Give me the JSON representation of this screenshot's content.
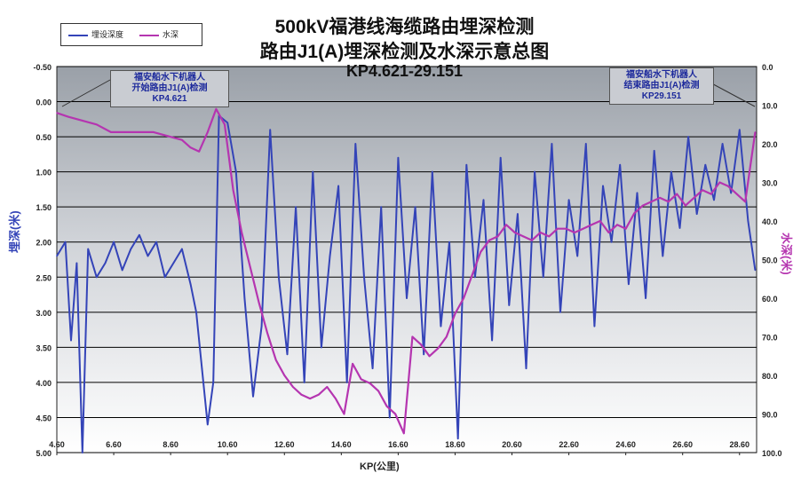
{
  "title": [
    "500kV福港线海缆路由埋深检测",
    "路由J1(A)埋深检测及水深示意总图",
    "KP4.621-29.151"
  ],
  "colors": {
    "burial": "#3444b8",
    "water": "#b535b0",
    "grid": "#000000"
  },
  "notes": {
    "start": [
      "福安船水下机器人",
      "开始路由J1(A)检测",
      "KP4.621"
    ],
    "end": [
      "福安船水下机器人",
      "结束路由J1(A)检测",
      "KP29.151"
    ]
  },
  "chart_data": {
    "type": "line",
    "title": "500kV福港线海缆路由埋深检测 路由J1(A)埋深检测及水深示意总图 KP4.621-29.151",
    "xlabel": "KP(公里)",
    "ylabel": "埋深(米)",
    "ylabel_right": "水深(米)",
    "xlim": [
      4.6,
      29.2
    ],
    "ylim": [
      5.0,
      -0.5
    ],
    "ylim_right": [
      100.0,
      0.0
    ],
    "x_ticks": [
      "4.60",
      "6.60",
      "8.60",
      "10.60",
      "12.60",
      "14.60",
      "16.60",
      "18.60",
      "20.60",
      "22.60",
      "24.60",
      "26.60",
      "28.60"
    ],
    "y_ticks": [
      "-0.50",
      "0.00",
      "0.50",
      "1.00",
      "1.50",
      "2.00",
      "2.50",
      "3.00",
      "3.50",
      "4.00",
      "4.50",
      "5.00"
    ],
    "y_ticks_right": [
      "0.0",
      "10.0",
      "20.0",
      "30.0",
      "40.0",
      "50.0",
      "60.0",
      "70.0",
      "80.0",
      "90.0",
      "100.0"
    ],
    "grid": true,
    "legend": "top-left",
    "series": [
      {
        "name": "埋设深度",
        "axis": "left",
        "x": [
          4.6,
          4.9,
          5.1,
          5.3,
          5.5,
          5.7,
          6.0,
          6.3,
          6.6,
          6.9,
          7.2,
          7.5,
          7.8,
          8.1,
          8.4,
          8.7,
          9.0,
          9.3,
          9.5,
          9.7,
          9.9,
          10.1,
          10.3,
          10.6,
          10.9,
          11.2,
          11.5,
          11.8,
          12.1,
          12.4,
          12.7,
          13.0,
          13.3,
          13.6,
          13.9,
          14.2,
          14.5,
          14.8,
          15.1,
          15.4,
          15.7,
          16.0,
          16.3,
          16.6,
          16.9,
          17.2,
          17.5,
          17.8,
          18.1,
          18.4,
          18.7,
          19.0,
          19.3,
          19.6,
          19.9,
          20.2,
          20.5,
          20.8,
          21.1,
          21.4,
          21.7,
          22.0,
          22.3,
          22.6,
          22.9,
          23.2,
          23.5,
          23.8,
          24.1,
          24.4,
          24.7,
          25.0,
          25.3,
          25.6,
          25.9,
          26.2,
          26.5,
          26.8,
          27.1,
          27.4,
          27.7,
          28.0,
          28.3,
          28.6,
          28.9,
          29.15
        ],
        "y": [
          2.2,
          2.0,
          3.4,
          2.3,
          5.0,
          2.1,
          2.5,
          2.3,
          2.0,
          2.4,
          2.1,
          1.9,
          2.2,
          2.0,
          2.5,
          2.3,
          2.1,
          2.6,
          3.0,
          3.8,
          4.6,
          4.0,
          0.2,
          0.3,
          1.0,
          2.8,
          4.2,
          3.2,
          0.4,
          2.5,
          3.6,
          1.5,
          4.0,
          1.0,
          3.5,
          2.2,
          1.2,
          4.0,
          0.6,
          2.5,
          3.8,
          1.5,
          4.5,
          0.8,
          2.8,
          1.5,
          3.6,
          1.0,
          3.2,
          2.0,
          4.8,
          0.9,
          2.5,
          1.4,
          3.4,
          0.8,
          2.9,
          1.6,
          3.8,
          1.0,
          2.5,
          0.6,
          3.0,
          1.4,
          2.2,
          0.6,
          3.2,
          1.2,
          2.0,
          0.9,
          2.6,
          1.3,
          2.8,
          0.7,
          2.2,
          1.0,
          1.8,
          0.5,
          1.6,
          0.9,
          1.4,
          0.6,
          1.3,
          0.4,
          1.7,
          2.4
        ]
      },
      {
        "name": "水深",
        "axis": "right",
        "x": [
          4.6,
          5.0,
          5.5,
          6.0,
          6.5,
          7.0,
          7.5,
          8.0,
          8.5,
          9.0,
          9.3,
          9.6,
          9.9,
          10.2,
          10.5,
          10.8,
          11.1,
          11.4,
          11.7,
          12.0,
          12.3,
          12.6,
          12.9,
          13.2,
          13.5,
          13.8,
          14.1,
          14.4,
          14.7,
          15.0,
          15.3,
          15.6,
          15.9,
          16.2,
          16.5,
          16.8,
          17.1,
          17.4,
          17.7,
          18.0,
          18.3,
          18.6,
          18.9,
          19.2,
          19.5,
          19.8,
          20.1,
          20.4,
          20.7,
          21.0,
          21.3,
          21.6,
          21.9,
          22.2,
          22.5,
          22.8,
          23.1,
          23.4,
          23.7,
          24.0,
          24.3,
          24.6,
          24.9,
          25.2,
          25.5,
          25.8,
          26.1,
          26.4,
          26.7,
          27.0,
          27.3,
          27.6,
          27.9,
          28.2,
          28.5,
          28.8,
          29.15
        ],
        "y": [
          12,
          13,
          14,
          15,
          17,
          17,
          17,
          17,
          18,
          19,
          21,
          22,
          17,
          11,
          15,
          32,
          43,
          52,
          61,
          69,
          76,
          80,
          83,
          85,
          86,
          85,
          83,
          86,
          90,
          77,
          81,
          82,
          84,
          88,
          90,
          95,
          70,
          72,
          75,
          73,
          70,
          64,
          60,
          54,
          48,
          45,
          44,
          41,
          43,
          44,
          45,
          43,
          44,
          42,
          42,
          43,
          42,
          41,
          40,
          43,
          41,
          42,
          38,
          36,
          35,
          34,
          35,
          33,
          36,
          34,
          32,
          33,
          30,
          31,
          33,
          35,
          17
        ]
      }
    ]
  }
}
